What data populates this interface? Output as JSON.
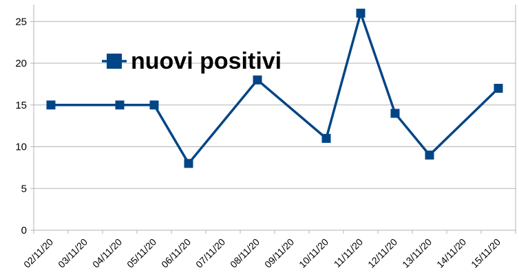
{
  "chart_data": {
    "type": "line",
    "categories": [
      "02/11/20",
      "03/11/20",
      "04/11/20",
      "05/11/20",
      "06/11/20",
      "07/11/20",
      "08/11/20",
      "09/11/20",
      "10/11/20",
      "11/11/20",
      "12/11/20",
      "13/11/20",
      "14/11/20",
      "15/11/20"
    ],
    "series": [
      {
        "name": "nuovi positivi",
        "color": "#004586",
        "points": [
          {
            "x": "02/11/20",
            "y": 15
          },
          {
            "x": "04/11/20",
            "y": 15
          },
          {
            "x": "05/11/20",
            "y": 15
          },
          {
            "x": "06/11/20",
            "y": 8
          },
          {
            "x": "08/11/20",
            "y": 18
          },
          {
            "x": "10/11/20",
            "y": 11
          },
          {
            "x": "11/11/20",
            "y": 26
          },
          {
            "x": "12/11/20",
            "y": 14
          },
          {
            "x": "13/11/20",
            "y": 9
          },
          {
            "x": "15/11/20",
            "y": 17
          }
        ]
      }
    ],
    "y_ticks": [
      0,
      5,
      10,
      15,
      20,
      25
    ],
    "ylim": [
      0,
      27
    ],
    "grid": true,
    "legend_position": "top-left",
    "title": "",
    "xlabel": "",
    "ylabel": ""
  }
}
